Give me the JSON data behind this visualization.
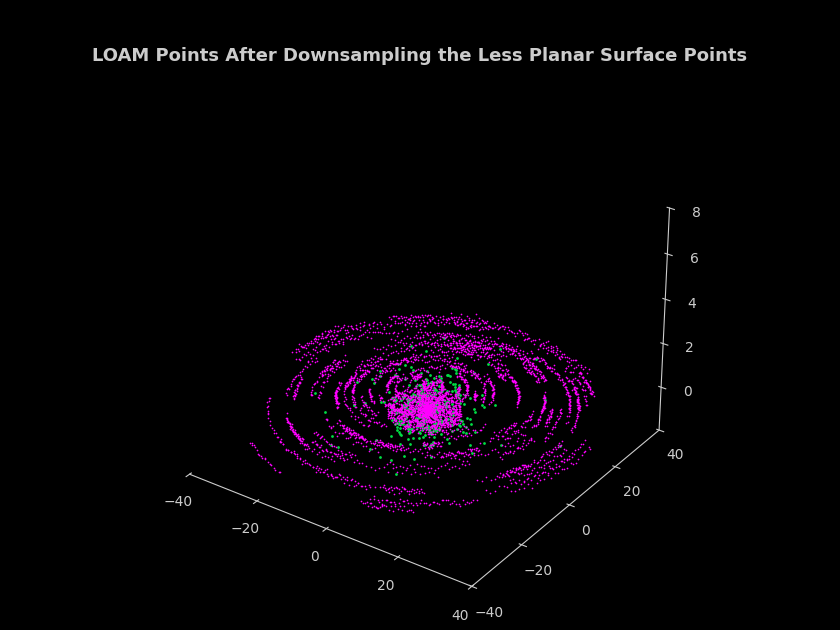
{
  "title": "LOAM Points After Downsampling the Less Planar Surface Points",
  "title_color": "#cccccc",
  "background_color": "#000000",
  "axis_color": "#cccccc",
  "xlim": [
    -40,
    40
  ],
  "ylim": [
    -40,
    40
  ],
  "zlim": [
    -2,
    8
  ],
  "xticks": [
    -40,
    -20,
    0,
    20,
    40
  ],
  "yticks": [
    -40,
    -20,
    0,
    20,
    40
  ],
  "zticks": [
    0,
    2,
    4,
    6,
    8
  ],
  "magenta_color": "#ff00ff",
  "green_color": "#00dd44",
  "seed": 42,
  "n_rings": 22,
  "n_green_points": 350,
  "elev": 30,
  "azim": -55
}
